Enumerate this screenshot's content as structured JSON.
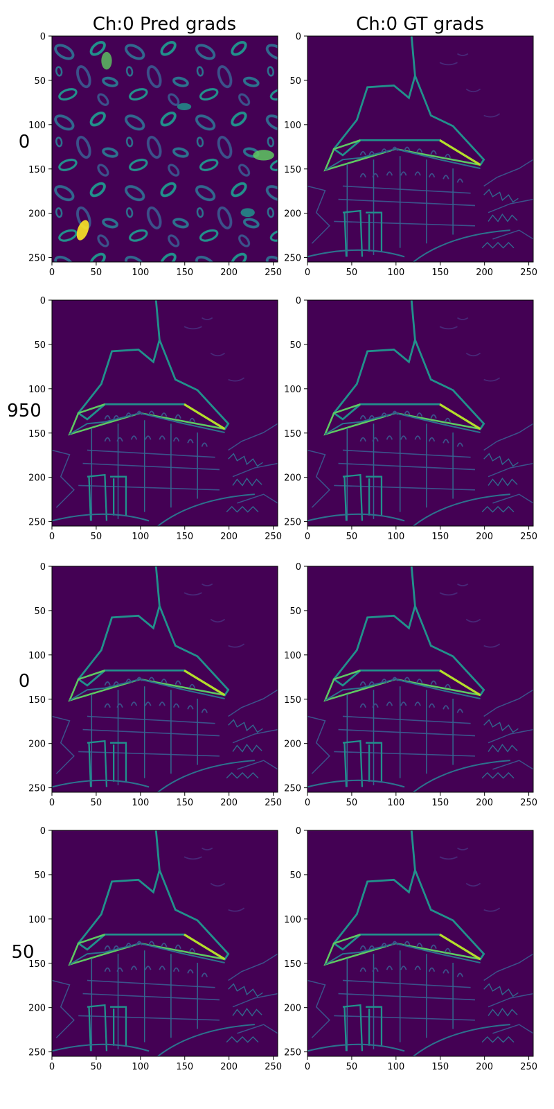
{
  "figure": {
    "column_titles": [
      "Ch:0 Pred grads",
      "Ch:0 GT grads"
    ],
    "row_labels": [
      "0",
      "950",
      "0",
      "50"
    ]
  },
  "colors": {
    "viridis_low": "#440154",
    "viridis_mid_low": "#3b528b",
    "viridis_mid": "#21918c",
    "viridis_mid_high": "#5ec962",
    "viridis_high": "#fde725"
  },
  "chart_data": [
    {
      "type": "heatmap",
      "row": 0,
      "col": 0,
      "content": "noise",
      "colormap": "viridis",
      "xlim": [
        0,
        255
      ],
      "ylim": [
        255,
        0
      ],
      "xticks": [
        0,
        50,
        100,
        150,
        200,
        250
      ],
      "yticks": [
        0,
        50,
        100,
        150,
        200,
        250
      ]
    },
    {
      "type": "heatmap",
      "row": 0,
      "col": 1,
      "content": "edges",
      "colormap": "viridis",
      "xlim": [
        0,
        255
      ],
      "ylim": [
        255,
        0
      ],
      "xticks": [
        0,
        50,
        100,
        150,
        200,
        250
      ],
      "yticks": [
        0,
        50,
        100,
        150,
        200,
        250
      ]
    },
    {
      "type": "heatmap",
      "row": 1,
      "col": 0,
      "content": "edges",
      "colormap": "viridis",
      "xlim": [
        0,
        255
      ],
      "ylim": [
        255,
        0
      ],
      "xticks": [
        0,
        50,
        100,
        150,
        200,
        250
      ],
      "yticks": [
        0,
        50,
        100,
        150,
        200,
        250
      ]
    },
    {
      "type": "heatmap",
      "row": 1,
      "col": 1,
      "content": "edges",
      "colormap": "viridis",
      "xlim": [
        0,
        255
      ],
      "ylim": [
        255,
        0
      ],
      "xticks": [
        0,
        50,
        100,
        150,
        200,
        250
      ],
      "yticks": [
        0,
        50,
        100,
        150,
        200,
        250
      ]
    },
    {
      "type": "heatmap",
      "row": 2,
      "col": 0,
      "content": "edges",
      "colormap": "viridis",
      "xlim": [
        0,
        255
      ],
      "ylim": [
        255,
        0
      ],
      "xticks": [
        0,
        50,
        100,
        150,
        200,
        250
      ],
      "yticks": [
        0,
        50,
        100,
        150,
        200,
        250
      ]
    },
    {
      "type": "heatmap",
      "row": 2,
      "col": 1,
      "content": "edges",
      "colormap": "viridis",
      "xlim": [
        0,
        255
      ],
      "ylim": [
        255,
        0
      ],
      "xticks": [
        0,
        50,
        100,
        150,
        200,
        250
      ],
      "yticks": [
        0,
        50,
        100,
        150,
        200,
        250
      ]
    },
    {
      "type": "heatmap",
      "row": 3,
      "col": 0,
      "content": "edges",
      "colormap": "viridis",
      "xlim": [
        0,
        255
      ],
      "ylim": [
        255,
        0
      ],
      "xticks": [
        0,
        50,
        100,
        150,
        200,
        250
      ],
      "yticks": [
        0,
        50,
        100,
        150,
        200,
        250
      ]
    },
    {
      "type": "heatmap",
      "row": 3,
      "col": 1,
      "content": "edges",
      "colormap": "viridis",
      "xlim": [
        0,
        255
      ],
      "ylim": [
        255,
        0
      ],
      "xticks": [
        0,
        50,
        100,
        150,
        200,
        250
      ],
      "yticks": [
        0,
        50,
        100,
        150,
        200,
        250
      ]
    }
  ]
}
